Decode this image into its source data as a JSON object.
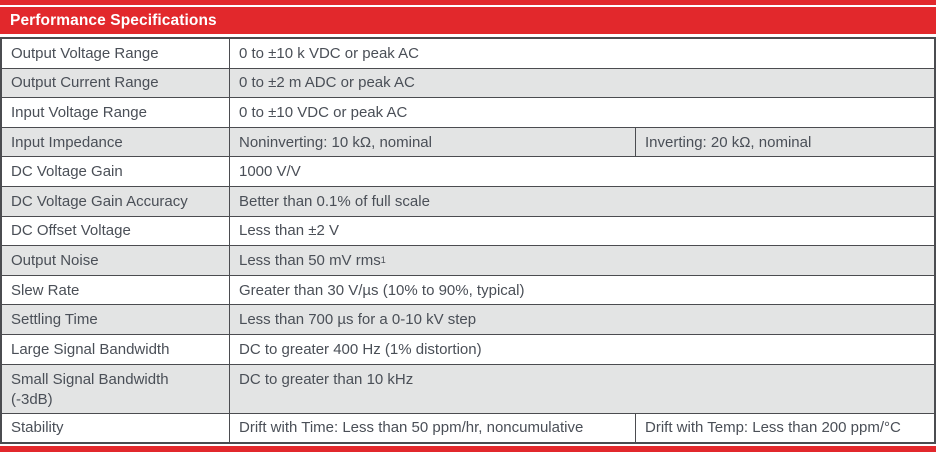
{
  "colors": {
    "accent_red": "#e2282c",
    "row_alt_gray": "#e3e4e4",
    "border_dark": "#4b4c50",
    "text_gray": "#4a4f57",
    "header_text": "#ffffff"
  },
  "header": {
    "title": "Performance Specifications"
  },
  "table": {
    "rows": [
      {
        "label": "Output Voltage Range",
        "value": "0 to ±10 k VDC or peak AC"
      },
      {
        "label": "Output Current Range",
        "value": "0 to ±2 m ADC or peak AC"
      },
      {
        "label": "Input Voltage Range",
        "value": "0 to ±10 VDC or peak AC"
      },
      {
        "label": "Input Impedance",
        "value": "Noninverting: 10 kΩ, nominal",
        "value2": "Inverting: 20 kΩ, nominal"
      },
      {
        "label": "DC Voltage Gain",
        "value": "1000 V/V"
      },
      {
        "label": "DC Voltage Gain Accuracy",
        "value": "Better than 0.1% of full scale"
      },
      {
        "label": "DC Offset Voltage",
        "value": "Less than ±2 V"
      },
      {
        "label": "Output Noise",
        "value": "Less than 50 mV rms",
        "value_sup": "1"
      },
      {
        "label": "Slew Rate",
        "value": "Greater than 30 V/µs (10% to 90%, typical)"
      },
      {
        "label": "Settling Time",
        "value": "Less than 700 µs for a 0-10 kV step"
      },
      {
        "label": "Large Signal Bandwidth",
        "value": "DC to greater 400 Hz (1% distortion)"
      },
      {
        "label": "Small Signal Bandwidth",
        "label2": "(-3dB)",
        "value": "DC to greater than 10 kHz"
      },
      {
        "label": "Stability",
        "value": "Drift with Time: Less than 50 ppm/hr, noncumulative",
        "value2": "Drift with Temp: Less than 200 ppm/°C"
      }
    ]
  }
}
